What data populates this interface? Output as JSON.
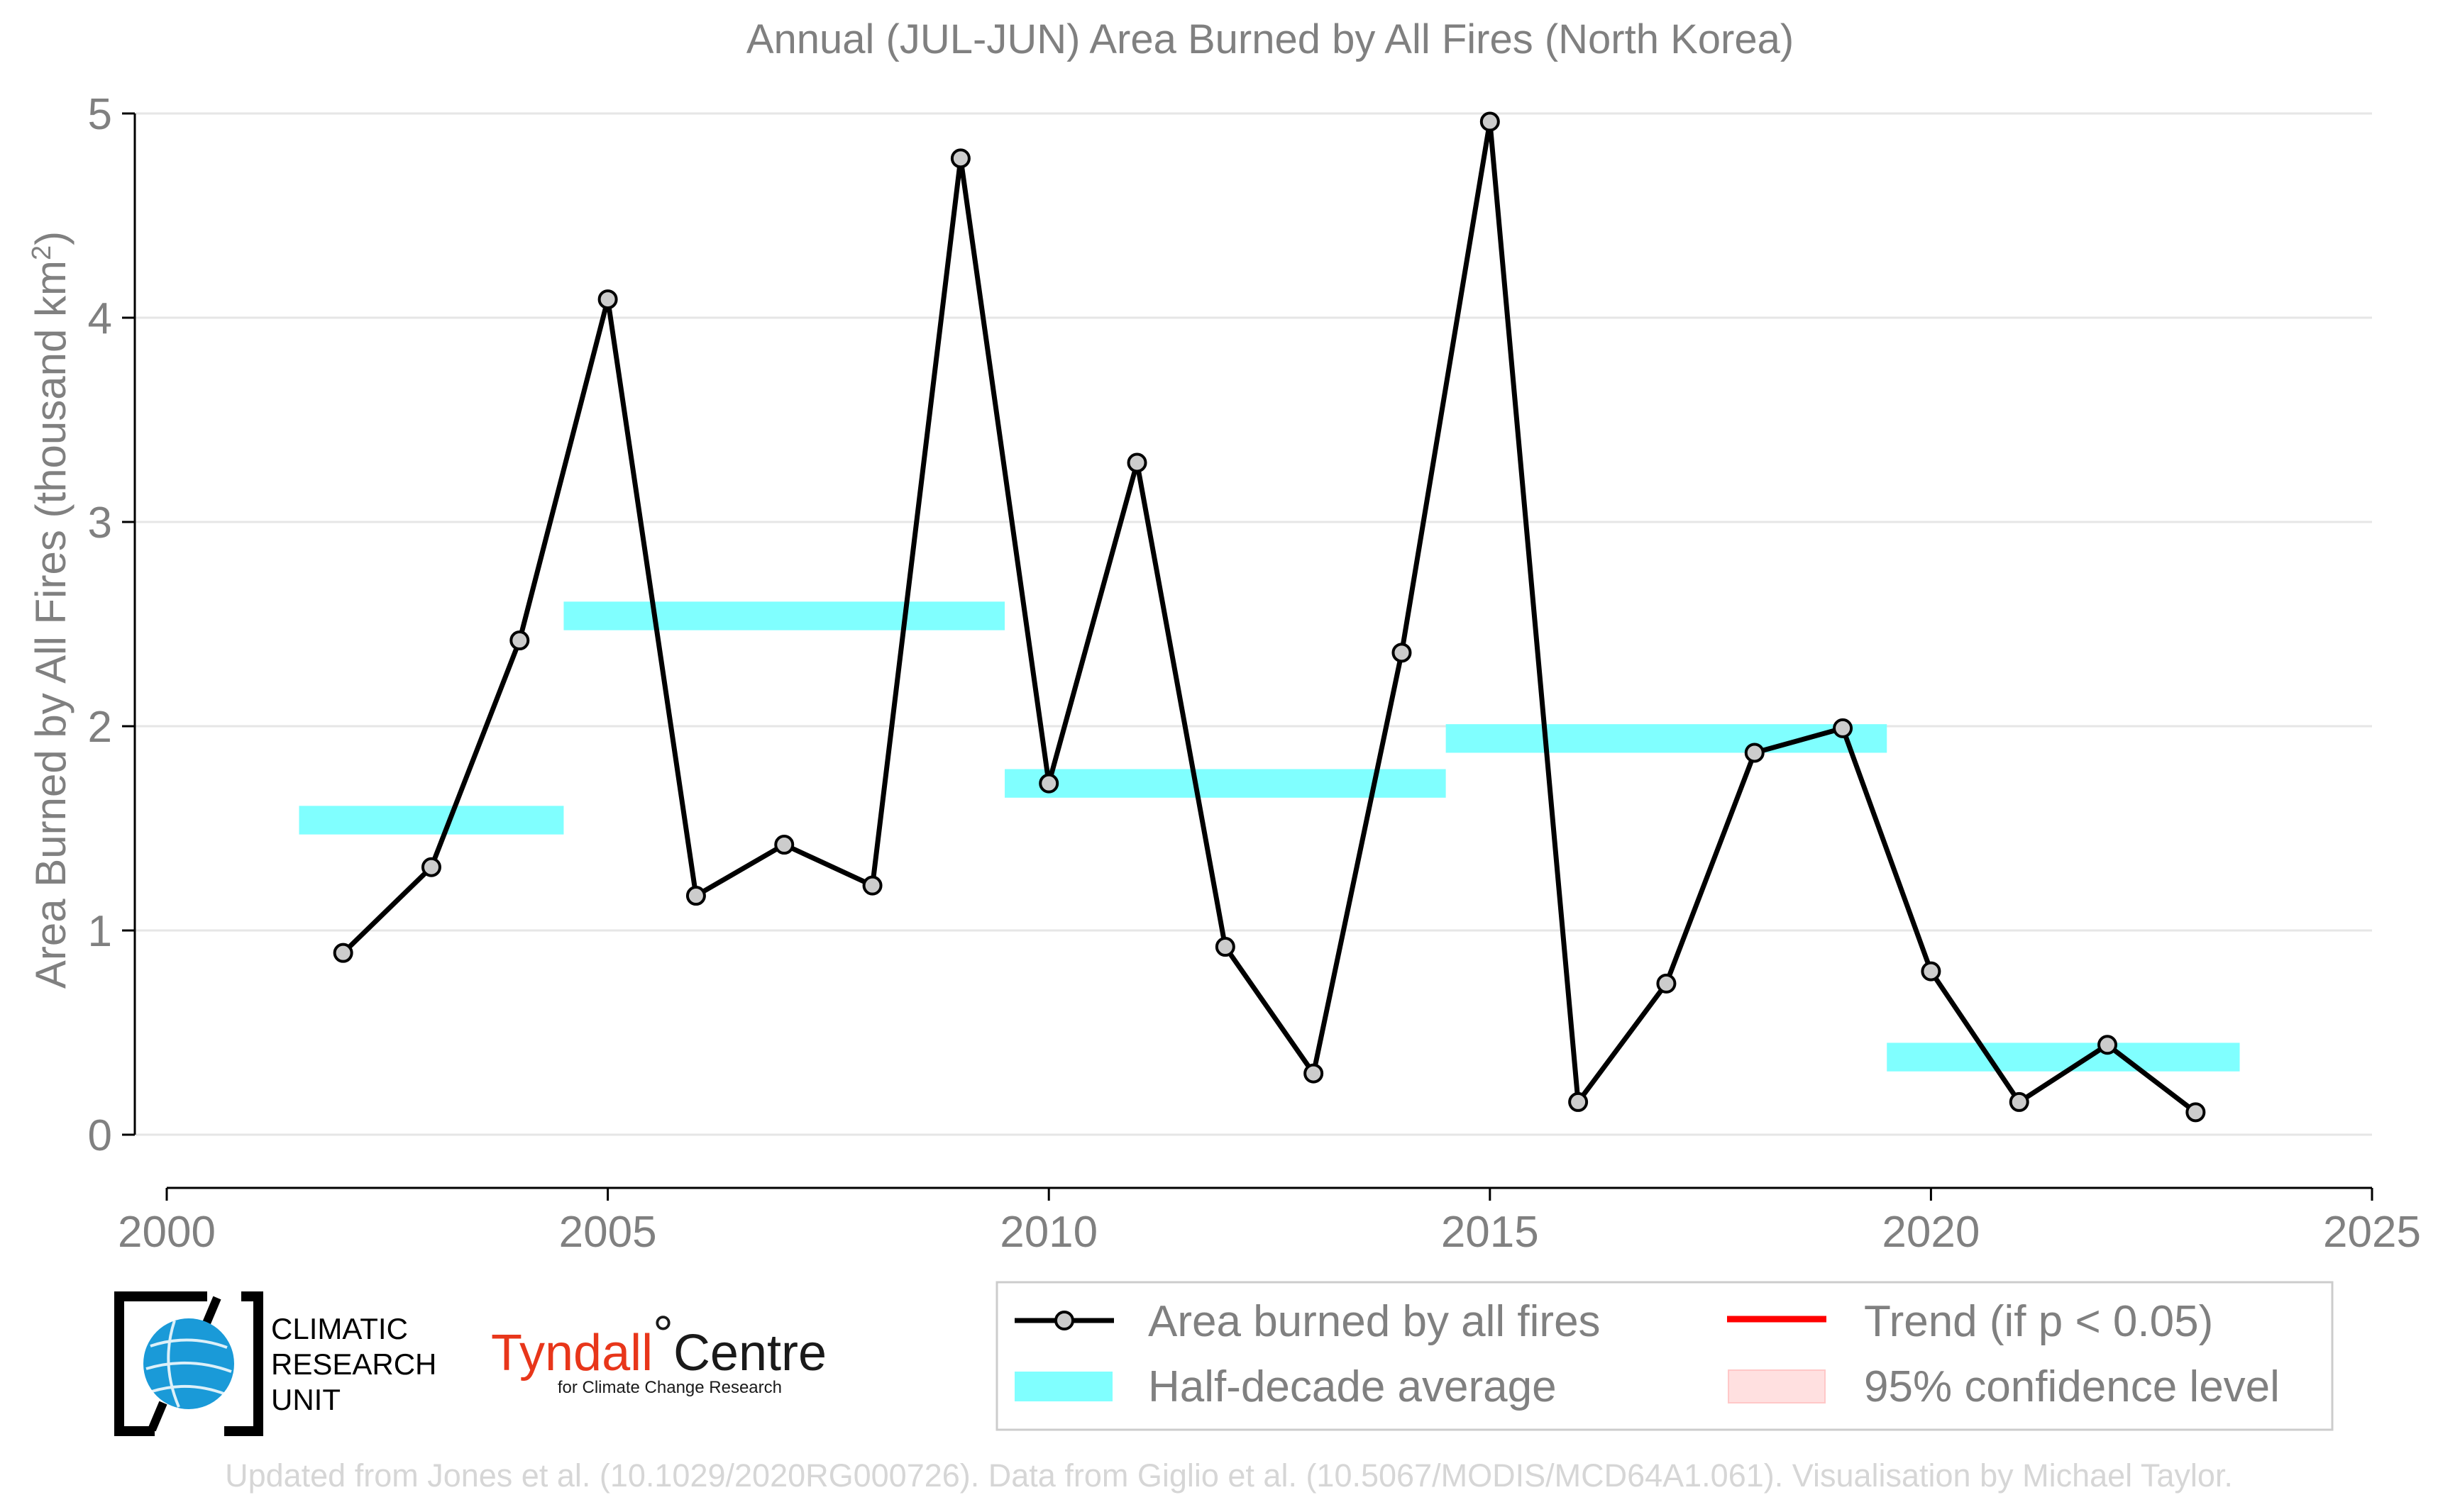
{
  "chart_data": {
    "type": "line",
    "title": "Annual (JUL-JUN) Area Burned by All Fires (North Korea)",
    "xlabel": "",
    "ylabel": "Area Burned by All Fires (thousand km",
    "ylabel_sup": "2",
    "ylabel_close": ")",
    "xlim": [
      2000,
      2025
    ],
    "ylim": [
      -0.25,
      5.0
    ],
    "x_ticks": [
      2000,
      2005,
      2010,
      2015,
      2020,
      2025
    ],
    "y_ticks": [
      0,
      1,
      2,
      3,
      4,
      5
    ],
    "x_tick_labels": [
      "2000",
      "2005",
      "2010",
      "2015",
      "2020",
      "2025"
    ],
    "y_tick_labels": [
      "0",
      "1",
      "2",
      "3",
      "4",
      "5"
    ],
    "grid": "horizontal",
    "legend_position": "bottom-right",
    "series": [
      {
        "name": "Area burned by all fires",
        "color": "#000000",
        "marker_fill": "#cccccc",
        "x": [
          2002,
          2003,
          2004,
          2005,
          2006,
          2007,
          2008,
          2009,
          2010,
          2011,
          2012,
          2013,
          2014,
          2015,
          2016,
          2017,
          2018,
          2019,
          2020,
          2021,
          2022,
          2023
        ],
        "y": [
          0.89,
          1.31,
          2.42,
          4.09,
          1.17,
          1.42,
          1.22,
          4.78,
          1.72,
          3.29,
          0.92,
          0.3,
          2.36,
          4.96,
          0.16,
          0.74,
          1.87,
          1.99,
          0.8,
          0.16,
          0.44,
          0.11
        ]
      }
    ],
    "half_decade_averages": {
      "name": "Half-decade average",
      "color": "#80ffff",
      "segments": [
        {
          "x_start": 2001.5,
          "x_end": 2004.5,
          "value": 1.54
        },
        {
          "x_start": 2004.5,
          "x_end": 2009.5,
          "value": 2.54
        },
        {
          "x_start": 2009.5,
          "x_end": 2014.5,
          "value": 1.72
        },
        {
          "x_start": 2014.5,
          "x_end": 2019.5,
          "value": 1.94
        },
        {
          "x_start": 2019.5,
          "x_end": 2023.5,
          "value": 0.38
        }
      ]
    },
    "legend": [
      {
        "label": "Area burned by all fires",
        "kind": "line-marker",
        "color": "#000000"
      },
      {
        "label": "Trend (if p < 0.05)",
        "kind": "line",
        "color": "#ff0000"
      },
      {
        "label": "Half-decade average",
        "kind": "band",
        "color": "#80ffff"
      },
      {
        "label": "95% confidence level",
        "kind": "band",
        "color": "#ffe0e0"
      }
    ]
  },
  "logos": {
    "cru_lines": [
      "CLIMATIC",
      "RESEARCH",
      "UNIT"
    ],
    "tyndall_main": "Tyndall",
    "tyndall_degree": "°",
    "tyndall_centre": "Centre",
    "tyndall_sub": "for Climate Change Research"
  },
  "footer": "Updated from Jones et al. (10.1029/2020RG000726). Data from Giglio et al. (10.5067/MODIS/MCD64A1.061). Visualisation by Michael Taylor."
}
